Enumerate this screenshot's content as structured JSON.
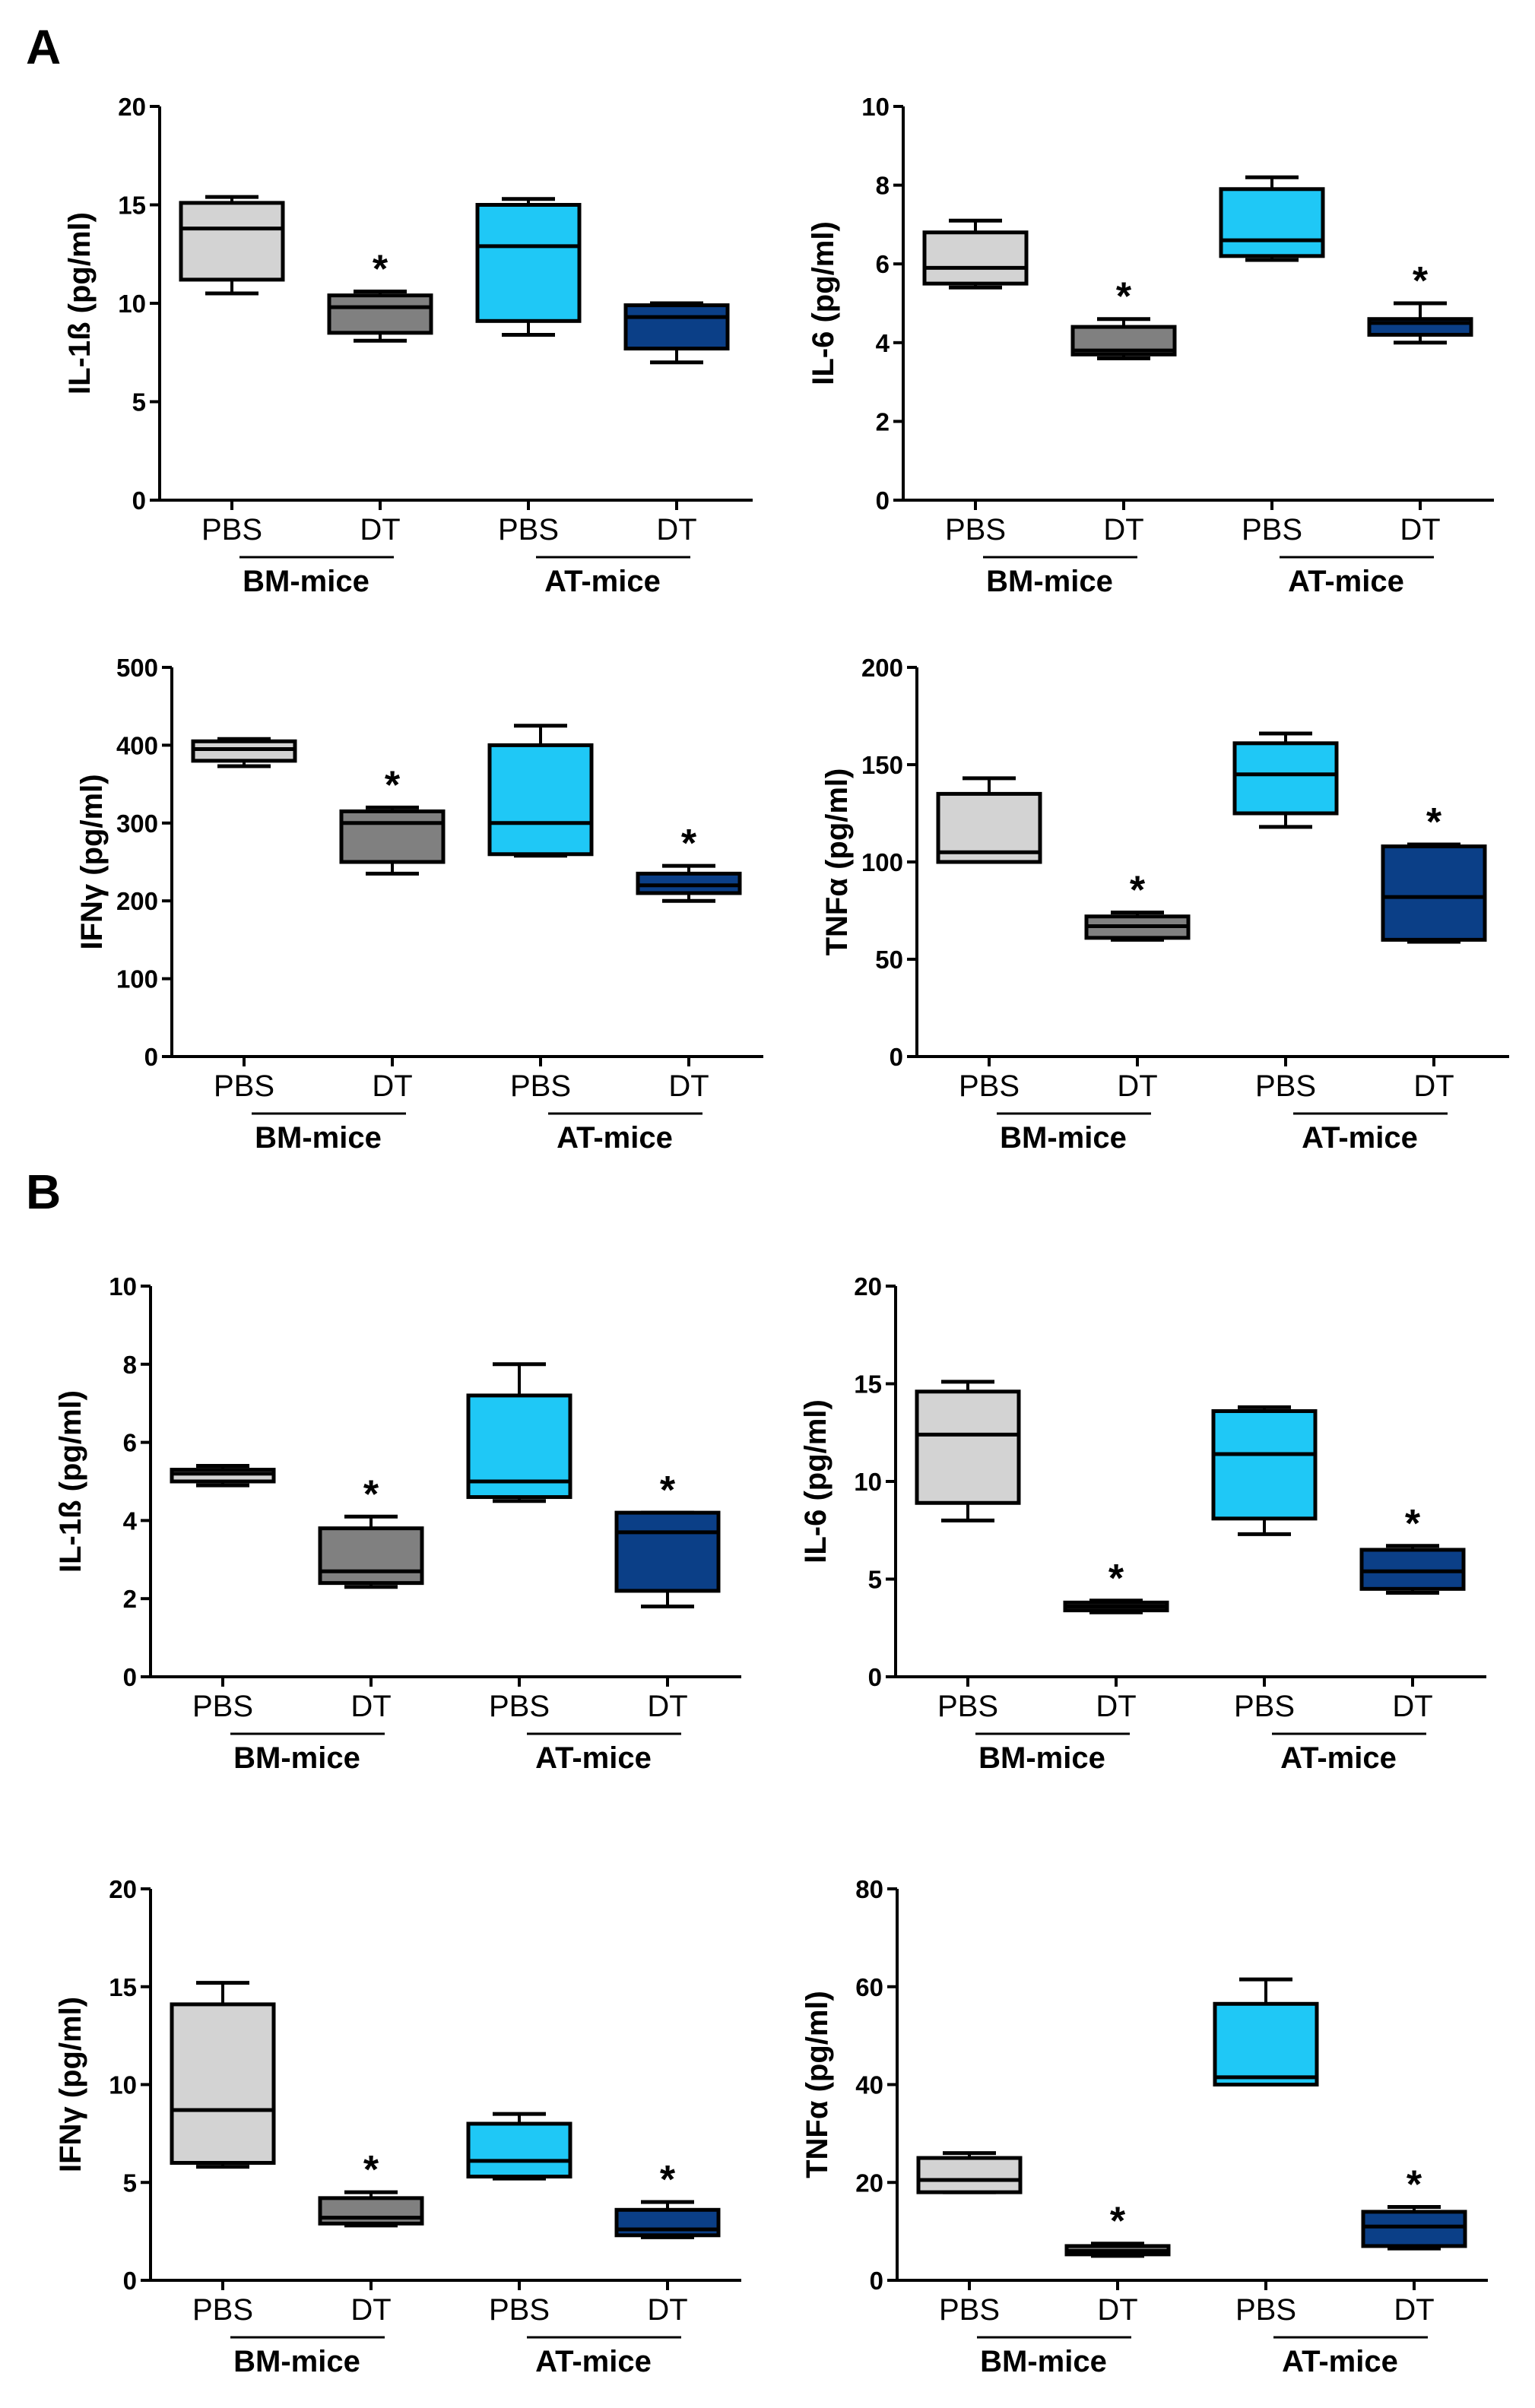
{
  "panels": [
    {
      "letter": "A"
    },
    {
      "letter": "B"
    }
  ],
  "colors": {
    "BM-mice PBS": "#d3d3d3",
    "BM-mice DT": "#808080",
    "AT-mice PBS": "#1fc8f6",
    "AT-mice DT": "#0b3f87"
  },
  "chart_data": [
    {
      "type": "box",
      "panel": "A",
      "ylabel": "IL-1ß (pg/ml)",
      "ylim": [
        0,
        20
      ],
      "yticks": [
        0,
        5,
        10,
        15,
        20
      ],
      "categories": [
        "PBS",
        "DT",
        "PBS",
        "DT"
      ],
      "groups": [
        "BM-mice",
        "AT-mice"
      ],
      "boxes": [
        {
          "min": 10.5,
          "q1": 11.2,
          "median": 13.8,
          "q3": 15.1,
          "max": 15.4,
          "sig": ""
        },
        {
          "min": 8.1,
          "q1": 8.5,
          "median": 9.8,
          "q3": 10.4,
          "max": 10.6,
          "sig": "*"
        },
        {
          "min": 8.4,
          "q1": 9.1,
          "median": 12.9,
          "q3": 15.0,
          "max": 15.3,
          "sig": ""
        },
        {
          "min": 7.0,
          "q1": 7.7,
          "median": 9.3,
          "q3": 9.9,
          "max": 10.0,
          "sig": ""
        }
      ]
    },
    {
      "type": "box",
      "panel": "A",
      "ylabel": "IL-6 (pg/ml)",
      "ylim": [
        0,
        10
      ],
      "yticks": [
        0,
        2,
        4,
        6,
        8,
        10
      ],
      "categories": [
        "PBS",
        "DT",
        "PBS",
        "DT"
      ],
      "groups": [
        "BM-mice",
        "AT-mice"
      ],
      "boxes": [
        {
          "min": 5.4,
          "q1": 5.5,
          "median": 5.9,
          "q3": 6.8,
          "max": 7.1,
          "sig": ""
        },
        {
          "min": 3.6,
          "q1": 3.7,
          "median": 3.8,
          "q3": 4.4,
          "max": 4.6,
          "sig": "*"
        },
        {
          "min": 6.1,
          "q1": 6.2,
          "median": 6.6,
          "q3": 7.9,
          "max": 8.2,
          "sig": ""
        },
        {
          "min": 4.0,
          "q1": 4.2,
          "median": 4.5,
          "q3": 4.6,
          "max": 5.0,
          "sig": "*"
        }
      ]
    },
    {
      "type": "box",
      "panel": "A",
      "ylabel": "IFNγ (pg/ml)",
      "ylim": [
        0,
        500
      ],
      "yticks": [
        0,
        100,
        200,
        300,
        400,
        500
      ],
      "categories": [
        "PBS",
        "DT",
        "PBS",
        "DT"
      ],
      "groups": [
        "BM-mice",
        "AT-mice"
      ],
      "boxes": [
        {
          "min": 373,
          "q1": 380,
          "median": 395,
          "q3": 405,
          "max": 408,
          "sig": ""
        },
        {
          "min": 235,
          "q1": 250,
          "median": 300,
          "q3": 315,
          "max": 320,
          "sig": "*"
        },
        {
          "min": 258,
          "q1": 260,
          "median": 300,
          "q3": 400,
          "max": 425,
          "sig": ""
        },
        {
          "min": 200,
          "q1": 210,
          "median": 220,
          "q3": 235,
          "max": 245,
          "sig": "*"
        }
      ]
    },
    {
      "type": "box",
      "panel": "A",
      "ylabel": "TNFα (pg/ml)",
      "ylim": [
        0,
        200
      ],
      "yticks": [
        0,
        50,
        100,
        150,
        200
      ],
      "categories": [
        "PBS",
        "DT",
        "PBS",
        "DT"
      ],
      "groups": [
        "BM-mice",
        "AT-mice"
      ],
      "boxes": [
        {
          "min": 100,
          "q1": 100,
          "median": 105,
          "q3": 135,
          "max": 143,
          "sig": ""
        },
        {
          "min": 60,
          "q1": 61,
          "median": 67,
          "q3": 72,
          "max": 74,
          "sig": "*"
        },
        {
          "min": 118,
          "q1": 125,
          "median": 145,
          "q3": 161,
          "max": 166,
          "sig": ""
        },
        {
          "min": 59,
          "q1": 60,
          "median": 82,
          "q3": 108,
          "max": 109,
          "sig": "*"
        }
      ]
    },
    {
      "type": "box",
      "panel": "B",
      "ylabel": "IL-1ß (pg/ml)",
      "ylim": [
        0,
        10
      ],
      "yticks": [
        0,
        2,
        4,
        6,
        8,
        10
      ],
      "categories": [
        "PBS",
        "DT",
        "PBS",
        "DT"
      ],
      "groups": [
        "BM-mice",
        "AT-mice"
      ],
      "boxes": [
        {
          "min": 4.9,
          "q1": 5.0,
          "median": 5.2,
          "q3": 5.3,
          "max": 5.4,
          "sig": ""
        },
        {
          "min": 2.3,
          "q1": 2.4,
          "median": 2.7,
          "q3": 3.8,
          "max": 4.1,
          "sig": "*"
        },
        {
          "min": 4.5,
          "q1": 4.6,
          "median": 5.0,
          "q3": 7.2,
          "max": 8.0,
          "sig": ""
        },
        {
          "min": 1.8,
          "q1": 2.2,
          "median": 3.7,
          "q3": 4.2,
          "max": 4.2,
          "sig": "*"
        }
      ]
    },
    {
      "type": "box",
      "panel": "B",
      "ylabel": "IL-6 (pg/ml)",
      "ylim": [
        0,
        20
      ],
      "yticks": [
        0,
        5,
        10,
        15,
        20
      ],
      "categories": [
        "PBS",
        "DT",
        "PBS",
        "DT"
      ],
      "groups": [
        "BM-mice",
        "AT-mice"
      ],
      "boxes": [
        {
          "min": 8.0,
          "q1": 8.9,
          "median": 12.4,
          "q3": 14.6,
          "max": 15.1,
          "sig": ""
        },
        {
          "min": 3.3,
          "q1": 3.4,
          "median": 3.6,
          "q3": 3.8,
          "max": 3.9,
          "sig": "*"
        },
        {
          "min": 7.3,
          "q1": 8.1,
          "median": 11.4,
          "q3": 13.6,
          "max": 13.8,
          "sig": ""
        },
        {
          "min": 4.3,
          "q1": 4.5,
          "median": 5.4,
          "q3": 6.5,
          "max": 6.7,
          "sig": "*"
        }
      ]
    },
    {
      "type": "box",
      "panel": "B",
      "ylabel": "IFNγ (pg/ml)",
      "ylim": [
        0,
        20
      ],
      "yticks": [
        0,
        5,
        10,
        15,
        20
      ],
      "categories": [
        "PBS",
        "DT",
        "PBS",
        "DT"
      ],
      "groups": [
        "BM-mice",
        "AT-mice"
      ],
      "boxes": [
        {
          "min": 5.8,
          "q1": 6.0,
          "median": 8.7,
          "q3": 14.1,
          "max": 15.2,
          "sig": ""
        },
        {
          "min": 2.8,
          "q1": 2.9,
          "median": 3.2,
          "q3": 4.2,
          "max": 4.5,
          "sig": "*"
        },
        {
          "min": 5.2,
          "q1": 5.3,
          "median": 6.1,
          "q3": 8.0,
          "max": 8.5,
          "sig": ""
        },
        {
          "min": 2.2,
          "q1": 2.3,
          "median": 2.6,
          "q3": 3.6,
          "max": 4.0,
          "sig": "*"
        }
      ]
    },
    {
      "type": "box",
      "panel": "B",
      "ylabel": "TNFα (pg/ml)",
      "ylim": [
        0,
        80
      ],
      "yticks": [
        0,
        20,
        40,
        60,
        80
      ],
      "categories": [
        "PBS",
        "DT",
        "PBS",
        "DT"
      ],
      "groups": [
        "BM-mice",
        "AT-mice"
      ],
      "boxes": [
        {
          "min": 18,
          "q1": 18,
          "median": 20.5,
          "q3": 25,
          "max": 26,
          "sig": ""
        },
        {
          "min": 5,
          "q1": 5.3,
          "median": 6,
          "q3": 7,
          "max": 7.5,
          "sig": "*"
        },
        {
          "min": 40,
          "q1": 40,
          "median": 41.5,
          "q3": 56.5,
          "max": 61.5,
          "sig": ""
        },
        {
          "min": 6.5,
          "q1": 7,
          "median": 11,
          "q3": 14,
          "max": 15,
          "sig": "*"
        }
      ]
    }
  ]
}
